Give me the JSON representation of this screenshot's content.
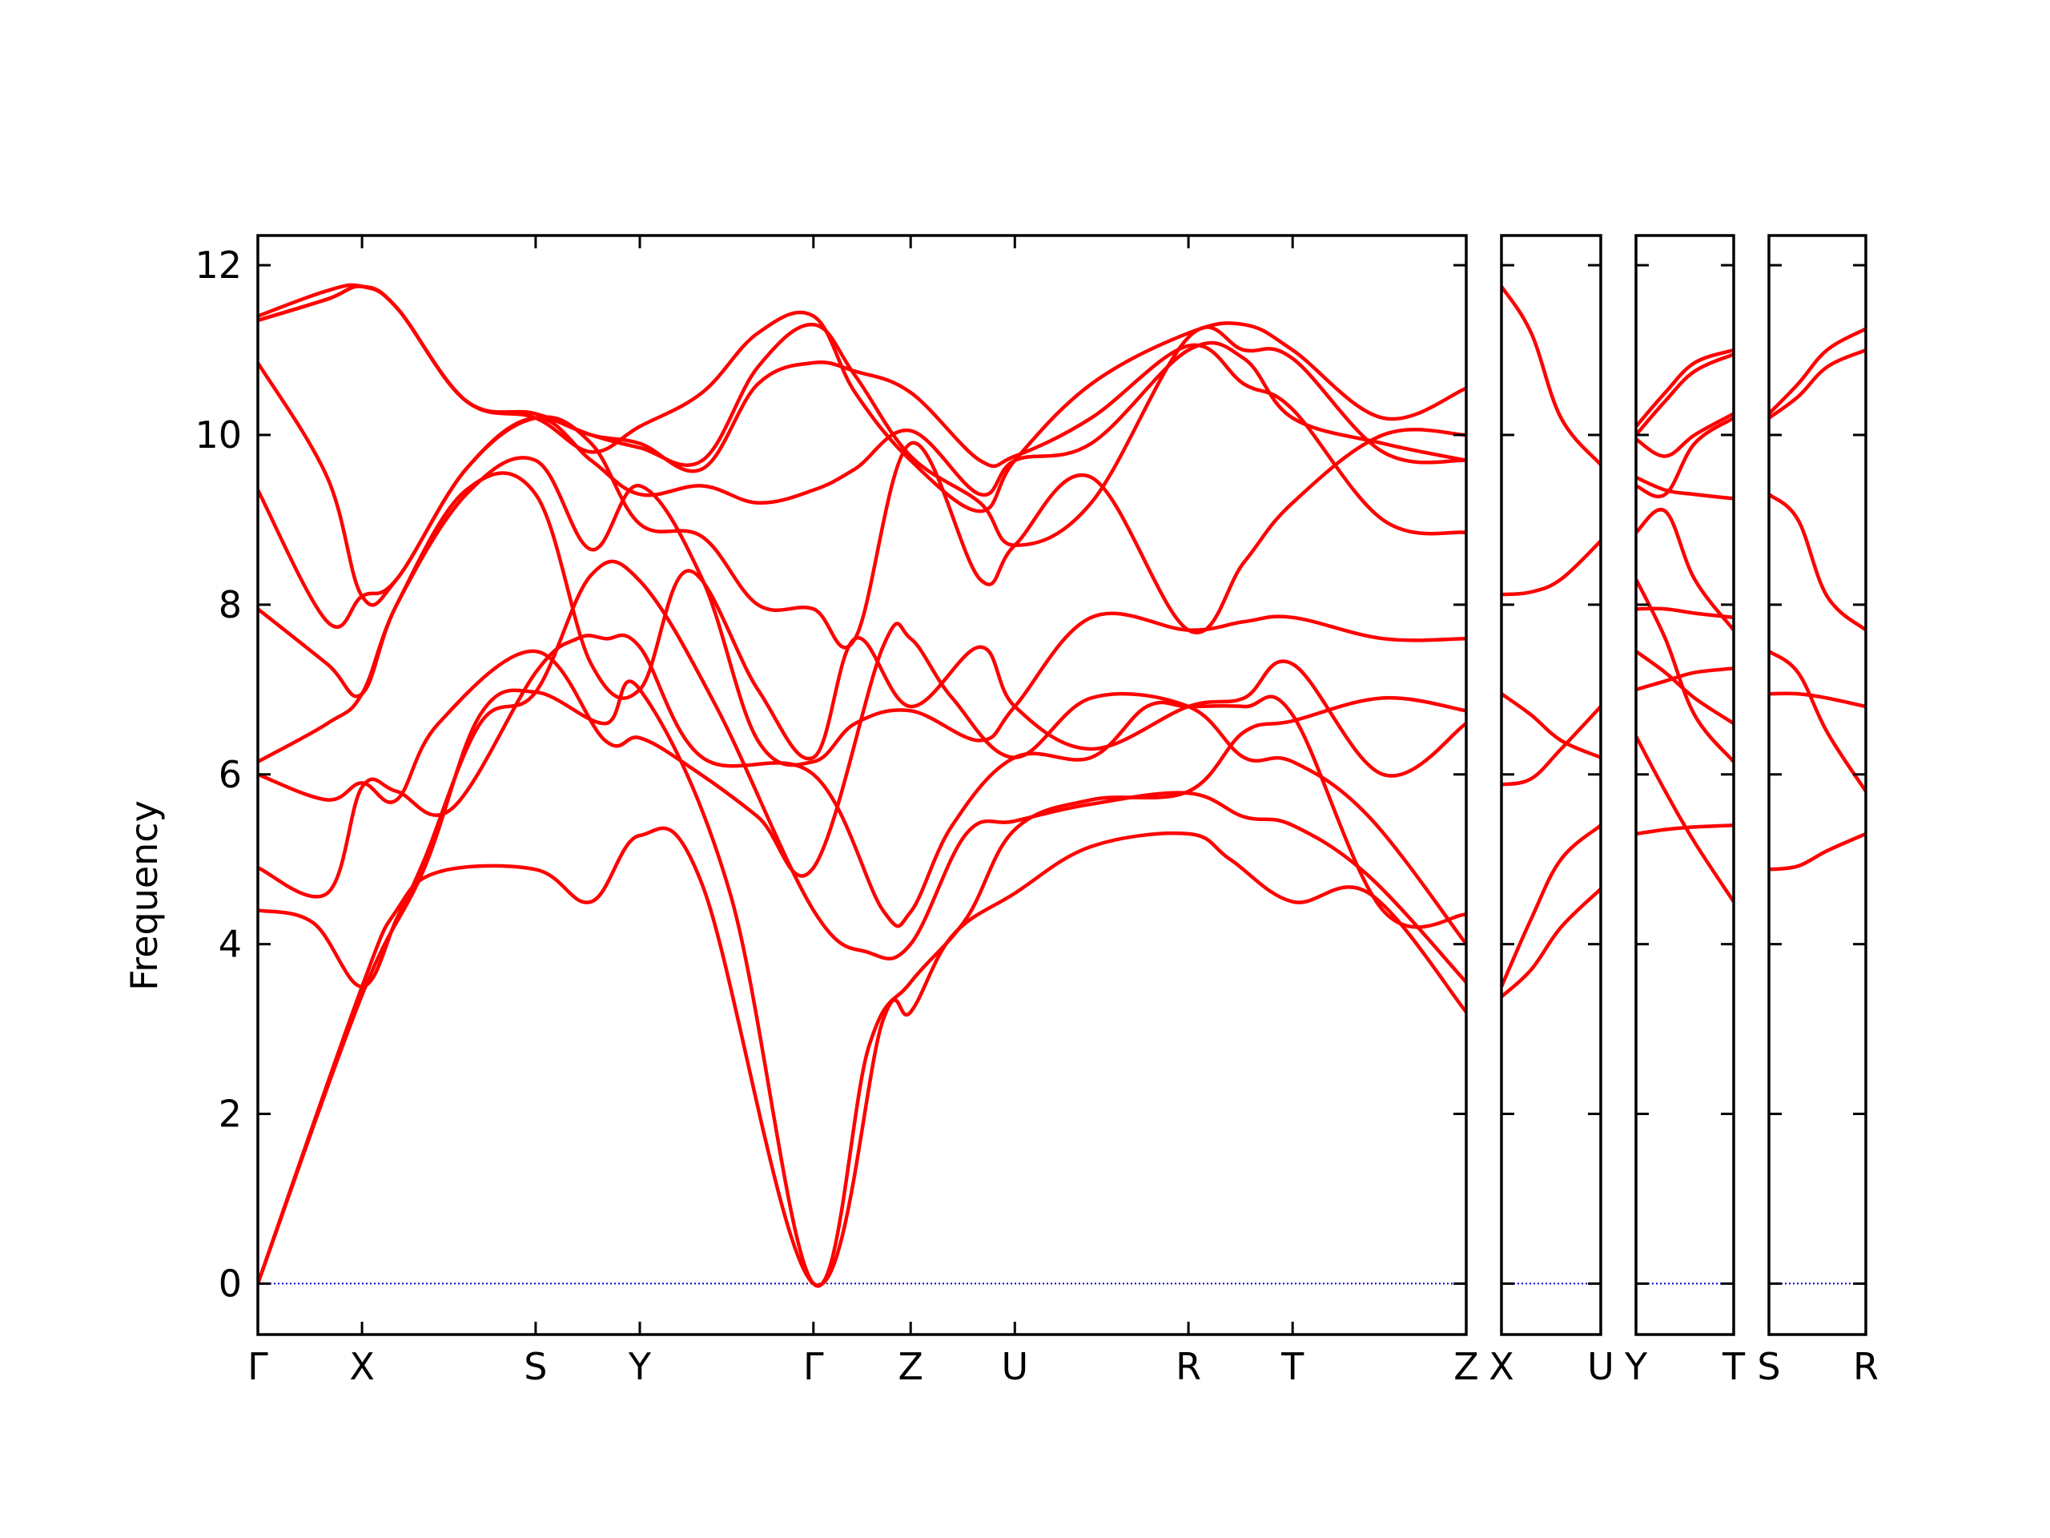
{
  "chart_data": {
    "type": "line",
    "ylabel": "Frequency",
    "ylim": [
      -0.6,
      12.35
    ],
    "yticks": [
      0,
      2,
      4,
      6,
      8,
      10,
      12
    ],
    "colors": {
      "bands": "#ff0000",
      "zero_line": "#0000cc",
      "axes": "#000000"
    },
    "zero_line_style": "dotted",
    "panels": [
      {
        "labels": [
          "Γ",
          "X",
          "S",
          "Y",
          "Γ",
          "Z",
          "U",
          "R",
          "T",
          "Z"
        ],
        "positions": [
          0,
          0.75,
          2.0,
          2.75,
          4.0,
          4.7,
          5.45,
          6.7,
          7.45,
          8.7
        ],
        "bands": [
          {
            "x": [
              0,
              0.75,
              1.0,
              1.3,
              2.0,
              2.4,
              2.75,
              3.2,
              4.0,
              4.5,
              4.7,
              5.0,
              5.45,
              6.0,
              6.7,
              7.0,
              7.45,
              8.0,
              8.7
            ],
            "y": [
              0,
              3.5,
              4.4,
              4.85,
              4.88,
              4.5,
              5.28,
              4.7,
              0,
              3.1,
              3.2,
              4.1,
              4.6,
              5.15,
              5.3,
              5.0,
              4.5,
              4.6,
              3.2
            ]
          },
          {
            "x": [
              0,
              0.75,
              1.2,
              1.6,
              2.0,
              2.5,
              2.75,
              3.4,
              4.0,
              4.4,
              4.7,
              5.1,
              5.45,
              6.0,
              6.7,
              7.1,
              7.45,
              8.1,
              8.7
            ],
            "y": [
              0,
              3.4,
              4.9,
              6.7,
              6.97,
              6.6,
              7.0,
              4.6,
              0,
              2.8,
              3.55,
              4.3,
              5.35,
              5.7,
              5.8,
              6.5,
              6.63,
              6.9,
              6.75
            ]
          },
          {
            "x": [
              0,
              0.4,
              0.75,
              1.0,
              1.2,
              1.6,
              2.0,
              2.4,
              2.75,
              3.3,
              4.0,
              4.4,
              4.7,
              5.1,
              5.45,
              6.0,
              6.7,
              7.1,
              7.45,
              8.0,
              8.7
            ],
            "y": [
              4.4,
              4.25,
              3.5,
              4.3,
              5.0,
              6.6,
              6.97,
              8.35,
              8.28,
              6.8,
              4.4,
              3.9,
              4.0,
              5.3,
              5.45,
              5.65,
              5.78,
              5.5,
              5.4,
              4.8,
              3.55
            ]
          },
          {
            "x": [
              0,
              0.5,
              0.75,
              1.0,
              1.4,
              2.0,
              2.3,
              2.5,
              2.75,
              3.2,
              4.0,
              4.5,
              4.7,
              5.0,
              5.45,
              6.0,
              6.4,
              6.7,
              7.1,
              7.45,
              8.1,
              8.7
            ],
            "y": [
              4.9,
              4.6,
              5.85,
              5.8,
              5.6,
              7.2,
              7.6,
              7.6,
              7.5,
              6.2,
              6.0,
              4.4,
              4.38,
              5.4,
              6.2,
              6.2,
              6.8,
              6.8,
              6.8,
              6.7,
              4.4,
              4.35
            ]
          },
          {
            "x": [
              0,
              0.5,
              0.75,
              1.0,
              1.3,
              2.0,
              2.5,
              2.75,
              3.1,
              3.6,
              4.0,
              4.5,
              4.7,
              5.0,
              5.45,
              6.0,
              6.7,
              7.1,
              7.45,
              8.0,
              8.7
            ],
            "y": [
              6.0,
              5.7,
              5.9,
              5.7,
              6.6,
              7.45,
              6.4,
              6.43,
              6.1,
              5.5,
              4.9,
              7.5,
              7.6,
              6.9,
              6.2,
              6.9,
              6.8,
              6.2,
              6.15,
              5.5,
              4.0
            ]
          },
          {
            "x": [
              0,
              0.5,
              0.75,
              1.0,
              1.5,
              2.0,
              2.4,
              2.75,
              3.1,
              3.6,
              4.0,
              4.3,
              4.7,
              5.2,
              5.45,
              6.0,
              6.7,
              7.1,
              7.45,
              8.1,
              8.7
            ],
            "y": [
              6.15,
              6.6,
              6.95,
              8.0,
              9.35,
              9.3,
              7.3,
              7.0,
              8.4,
              7.0,
              6.2,
              7.6,
              6.8,
              7.5,
              6.8,
              6.3,
              6.8,
              6.9,
              7.3,
              6.0,
              6.6
            ]
          },
          {
            "x": [
              0,
              0.5,
              0.75,
              1.0,
              1.5,
              2.0,
              2.4,
              2.75,
              3.2,
              3.6,
              4.0,
              4.3,
              4.7,
              5.2,
              5.45,
              6.0,
              6.7,
              7.1,
              7.45,
              8.1,
              8.7
            ],
            "y": [
              7.95,
              7.3,
              6.95,
              8.0,
              9.3,
              9.7,
              8.65,
              9.4,
              8.3,
              6.4,
              6.15,
              6.6,
              6.75,
              6.4,
              6.8,
              7.85,
              7.7,
              7.8,
              7.85,
              7.6,
              7.6
            ]
          },
          {
            "x": [
              0,
              0.5,
              0.75,
              1.0,
              1.5,
              2.0,
              2.4,
              2.75,
              3.2,
              3.6,
              4.0,
              4.3,
              4.7,
              5.2,
              5.45,
              6.0,
              6.7,
              7.1,
              7.45,
              8.1,
              8.7
            ],
            "y": [
              9.35,
              7.8,
              8.1,
              8.3,
              9.6,
              10.2,
              9.9,
              8.95,
              8.8,
              8.0,
              7.95,
              7.6,
              9.9,
              8.3,
              8.7,
              9.5,
              7.7,
              8.5,
              9.2,
              10.0,
              10.0
            ]
          },
          {
            "x": [
              0,
              0.5,
              0.75,
              1.0,
              1.5,
              2.0,
              2.4,
              2.75,
              3.2,
              3.6,
              4.0,
              4.3,
              4.7,
              5.2,
              5.45,
              6.0,
              6.7,
              7.1,
              7.45,
              8.1,
              8.7
            ],
            "y": [
              10.85,
              9.5,
              8.1,
              8.3,
              9.6,
              10.2,
              9.7,
              9.3,
              9.4,
              9.2,
              9.35,
              9.6,
              10.05,
              9.3,
              9.7,
              9.9,
              11.0,
              10.9,
              10.2,
              9.9,
              9.7
            ]
          },
          {
            "x": [
              0,
              0.5,
              0.75,
              1.0,
              1.5,
              2.0,
              2.4,
              2.75,
              3.2,
              3.6,
              4.0,
              4.3,
              4.7,
              5.2,
              5.45,
              6.0,
              6.7,
              7.1,
              7.45,
              8.1,
              8.7
            ],
            "y": [
              11.35,
              11.6,
              11.75,
              11.5,
              10.4,
              10.25,
              10.0,
              9.9,
              9.6,
              10.6,
              10.85,
              10.75,
              10.5,
              9.7,
              9.75,
              10.2,
              11.05,
              10.6,
              10.3,
              9.0,
              8.85
            ]
          },
          {
            "x": [
              0,
              0.5,
              0.75,
              1.0,
              1.5,
              2.0,
              2.4,
              2.75,
              3.2,
              3.6,
              4.0,
              4.3,
              4.7,
              5.2,
              5.45,
              6.0,
              6.7,
              7.1,
              7.45,
              8.1,
              8.7
            ],
            "y": [
              11.4,
              11.7,
              11.75,
              11.5,
              10.4,
              10.25,
              10.0,
              9.85,
              9.7,
              10.8,
              11.3,
              10.7,
              9.75,
              9.2,
              8.7,
              9.2,
              11.15,
              11.0,
              10.9,
              9.8,
              9.7
            ]
          },
          {
            "x": [
              0,
              0.5,
              0.75,
              1.0,
              1.5,
              2.0,
              2.4,
              2.75,
              3.2,
              3.6,
              4.0,
              4.3,
              4.7,
              5.2,
              5.45,
              6.0,
              6.7,
              7.1,
              7.45,
              8.1,
              8.7
            ],
            "y": [
              11.35,
              11.6,
              11.75,
              11.5,
              10.4,
              10.2,
              9.8,
              10.1,
              10.5,
              11.2,
              11.4,
              10.5,
              9.7,
              9.1,
              9.7,
              10.6,
              11.2,
              11.3,
              11.0,
              10.2,
              10.55
            ]
          }
        ]
      },
      {
        "labels": [
          "X",
          "U"
        ],
        "positions": [
          0,
          1
        ],
        "bands": [
          {
            "x": [
              0,
              0.3,
              0.6,
              1
            ],
            "y": [
              3.38,
              3.7,
              4.2,
              4.65
            ]
          },
          {
            "x": [
              0,
              0.3,
              0.6,
              1
            ],
            "y": [
              3.5,
              4.3,
              5.0,
              5.4
            ]
          },
          {
            "x": [
              0,
              0.3,
              0.6,
              1
            ],
            "y": [
              5.88,
              5.95,
              6.3,
              6.8
            ]
          },
          {
            "x": [
              0,
              0.3,
              0.6,
              1
            ],
            "y": [
              6.95,
              6.7,
              6.4,
              6.2
            ]
          },
          {
            "x": [
              0,
              0.3,
              0.6,
              1
            ],
            "y": [
              8.12,
              8.15,
              8.3,
              8.75
            ]
          },
          {
            "x": [
              0,
              0.3,
              0.6,
              1
            ],
            "y": [
              11.75,
              11.2,
              10.2,
              9.65
            ]
          }
        ]
      },
      {
        "labels": [
          "Y",
          "T"
        ],
        "positions": [
          0,
          1
        ],
        "bands": [
          {
            "x": [
              0,
              0.3,
              0.6,
              1
            ],
            "y": [
              5.3,
              5.35,
              5.38,
              5.4
            ]
          },
          {
            "x": [
              0,
              0.3,
              0.6,
              1
            ],
            "y": [
              6.45,
              5.8,
              5.2,
              4.5
            ]
          },
          {
            "x": [
              0,
              0.3,
              0.6,
              1
            ],
            "y": [
              7.0,
              7.1,
              7.2,
              7.25
            ]
          },
          {
            "x": [
              0,
              0.3,
              0.6,
              1
            ],
            "y": [
              7.45,
              7.2,
              6.9,
              6.6
            ]
          },
          {
            "x": [
              0,
              0.3,
              0.6,
              1
            ],
            "y": [
              8.3,
              7.6,
              6.7,
              6.15
            ]
          },
          {
            "x": [
              0,
              0.3,
              0.6,
              1
            ],
            "y": [
              7.95,
              7.95,
              7.9,
              7.85
            ]
          },
          {
            "x": [
              0,
              0.3,
              0.6,
              1
            ],
            "y": [
              8.85,
              9.1,
              8.3,
              7.7
            ]
          },
          {
            "x": [
              0,
              0.3,
              0.6,
              1
            ],
            "y": [
              9.5,
              9.35,
              9.3,
              9.25
            ]
          },
          {
            "x": [
              0,
              0.3,
              0.6,
              1
            ],
            "y": [
              9.4,
              9.3,
              9.9,
              10.2
            ]
          },
          {
            "x": [
              0,
              0.3,
              0.6,
              1
            ],
            "y": [
              9.95,
              9.75,
              10.0,
              10.25
            ]
          },
          {
            "x": [
              0,
              0.3,
              0.6,
              1
            ],
            "y": [
              10.0,
              10.4,
              10.75,
              10.95
            ]
          },
          {
            "x": [
              0,
              0.3,
              0.6,
              1
            ],
            "y": [
              10.1,
              10.5,
              10.85,
              11.0
            ]
          }
        ]
      },
      {
        "labels": [
          "S",
          "R"
        ],
        "positions": [
          0,
          1
        ],
        "bands": [
          {
            "x": [
              0,
              0.3,
              0.6,
              1
            ],
            "y": [
              4.88,
              4.92,
              5.1,
              5.3
            ]
          },
          {
            "x": [
              0,
              0.3,
              0.6,
              1
            ],
            "y": [
              6.95,
              6.95,
              6.9,
              6.8
            ]
          },
          {
            "x": [
              0,
              0.3,
              0.6,
              1
            ],
            "y": [
              7.45,
              7.2,
              6.5,
              5.8
            ]
          },
          {
            "x": [
              0,
              0.3,
              0.6,
              1
            ],
            "y": [
              9.3,
              9.0,
              8.1,
              7.7
            ]
          },
          {
            "x": [
              0,
              0.3,
              0.6,
              1
            ],
            "y": [
              10.2,
              10.45,
              10.8,
              11.0
            ]
          },
          {
            "x": [
              0,
              0.3,
              0.6,
              1
            ],
            "y": [
              10.25,
              10.6,
              11.0,
              11.25
            ]
          }
        ]
      }
    ]
  }
}
